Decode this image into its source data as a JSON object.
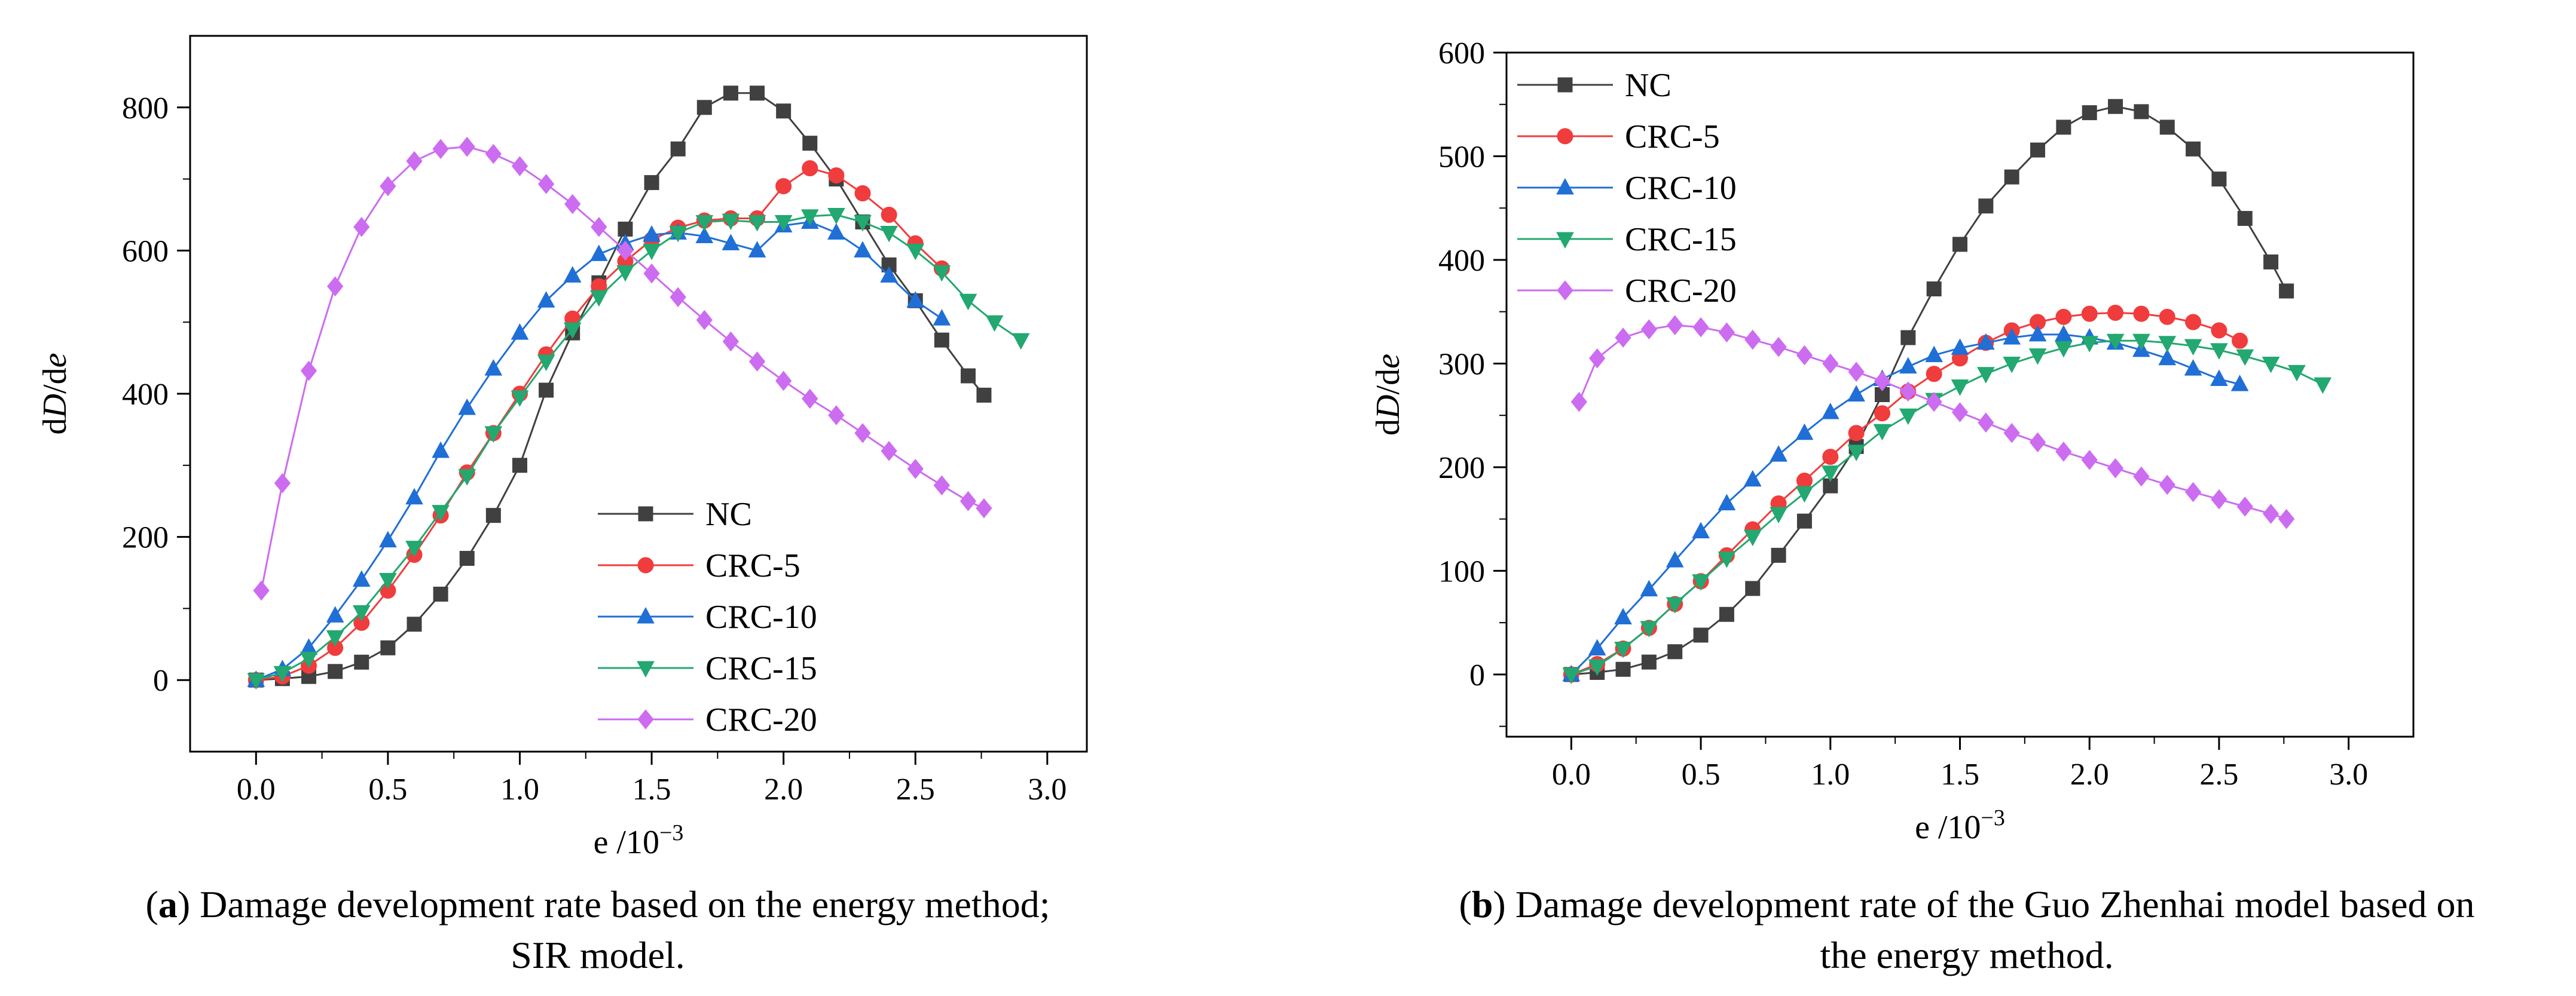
{
  "chart_data": [
    {
      "type": "line",
      "id": "a",
      "xlabel_prefix": "e /10",
      "xlabel_exp": "−3",
      "ylabel_prefix": "d",
      "ylabel_italic_1": "D",
      "ylabel_mid": "/d",
      "ylabel_italic_2": "e",
      "xlim": [
        -0.25,
        3.15
      ],
      "ylim": [
        -100,
        900
      ],
      "xticks": [
        0.0,
        0.5,
        1.0,
        1.5,
        2.0,
        2.5,
        3.0
      ],
      "xtick_labels": [
        "0.0",
        "0.5",
        "1.0",
        "1.5",
        "2.0",
        "2.5",
        "3.0"
      ],
      "yticks": [
        0,
        200,
        400,
        600,
        800
      ],
      "ytick_labels": [
        "0",
        "200",
        "400",
        "600",
        "800"
      ],
      "legend_position": "bottom-center",
      "caption_label": "(a)",
      "caption_line1": " Damage development rate based on the energy method;",
      "caption_line2": "SIR model.",
      "series": [
        {
          "name": "NC",
          "color": "#404040",
          "marker": "square",
          "x": [
            0,
            0.1,
            0.2,
            0.3,
            0.4,
            0.5,
            0.6,
            0.7,
            0.8,
            0.9,
            1.0,
            1.1,
            1.2,
            1.3,
            1.4,
            1.5,
            1.6,
            1.7,
            1.8,
            1.9,
            2.0,
            2.1,
            2.2,
            2.3,
            2.4,
            2.5,
            2.6,
            2.7,
            2.76
          ],
          "y": [
            0,
            2,
            5,
            12,
            25,
            45,
            78,
            120,
            170,
            230,
            300,
            405,
            485,
            555,
            630,
            695,
            742,
            800,
            820,
            820,
            795,
            750,
            700,
            640,
            580,
            530,
            475,
            425,
            398
          ]
        },
        {
          "name": "CRC-5",
          "color": "#f03c3c",
          "marker": "circle",
          "x": [
            0,
            0.1,
            0.2,
            0.3,
            0.4,
            0.5,
            0.6,
            0.7,
            0.8,
            0.9,
            1.0,
            1.1,
            1.2,
            1.3,
            1.4,
            1.5,
            1.6,
            1.7,
            1.8,
            1.9,
            2.0,
            2.1,
            2.2,
            2.3,
            2.4,
            2.5,
            2.6
          ],
          "y": [
            0,
            5,
            20,
            45,
            80,
            125,
            175,
            230,
            290,
            345,
            400,
            455,
            505,
            550,
            585,
            615,
            632,
            642,
            645,
            645,
            690,
            715,
            705,
            680,
            650,
            610,
            575
          ]
        },
        {
          "name": "CRC-10",
          "color": "#1f6fd6",
          "marker": "triangle-up",
          "x": [
            0,
            0.1,
            0.2,
            0.3,
            0.4,
            0.5,
            0.6,
            0.7,
            0.8,
            0.9,
            1.0,
            1.1,
            1.2,
            1.3,
            1.4,
            1.5,
            1.6,
            1.7,
            1.8,
            1.9,
            2.0,
            2.1,
            2.2,
            2.3,
            2.4,
            2.5,
            2.6
          ],
          "y": [
            0,
            15,
            45,
            90,
            140,
            195,
            255,
            320,
            380,
            435,
            485,
            530,
            565,
            595,
            610,
            622,
            625,
            620,
            610,
            600,
            635,
            640,
            625,
            600,
            565,
            530,
            505
          ]
        },
        {
          "name": "CRC-15",
          "color": "#22a870",
          "marker": "triangle-down",
          "x": [
            0,
            0.1,
            0.2,
            0.3,
            0.4,
            0.5,
            0.6,
            0.7,
            0.8,
            0.9,
            1.0,
            1.1,
            1.2,
            1.3,
            1.4,
            1.5,
            1.6,
            1.7,
            1.8,
            1.9,
            2.0,
            2.1,
            2.2,
            2.3,
            2.4,
            2.5,
            2.6,
            2.7,
            2.8,
            2.9
          ],
          "y": [
            0,
            10,
            30,
            60,
            95,
            140,
            185,
            235,
            285,
            345,
            395,
            445,
            490,
            535,
            570,
            600,
            625,
            640,
            642,
            640,
            640,
            648,
            650,
            640,
            625,
            600,
            570,
            530,
            500,
            475
          ]
        },
        {
          "name": "CRC-20",
          "color": "#cc6cf0",
          "marker": "diamond",
          "x": [
            0.02,
            0.1,
            0.2,
            0.3,
            0.4,
            0.5,
            0.6,
            0.7,
            0.8,
            0.9,
            1.0,
            1.1,
            1.2,
            1.3,
            1.4,
            1.5,
            1.6,
            1.7,
            1.8,
            1.9,
            2.0,
            2.1,
            2.2,
            2.3,
            2.4,
            2.5,
            2.6,
            2.7,
            2.76
          ],
          "y": [
            125,
            275,
            432,
            550,
            633,
            690,
            725,
            742,
            745,
            735,
            718,
            693,
            665,
            633,
            600,
            568,
            535,
            503,
            473,
            445,
            418,
            393,
            370,
            345,
            320,
            295,
            272,
            250,
            240
          ]
        }
      ]
    },
    {
      "type": "line",
      "id": "b",
      "xlabel_prefix": "e /10",
      "xlabel_exp": "−3",
      "ylabel_prefix": "d",
      "ylabel_italic_1": "D",
      "ylabel_mid": "/d",
      "ylabel_italic_2": "e",
      "xlim": [
        -0.25,
        3.25
      ],
      "ylim": [
        -60,
        600
      ],
      "xticks": [
        0.0,
        0.5,
        1.0,
        1.5,
        2.0,
        2.5,
        3.0
      ],
      "xtick_labels": [
        "0.0",
        "0.5",
        "1.0",
        "1.5",
        "2.0",
        "2.5",
        "3.0"
      ],
      "yticks": [
        0,
        100,
        200,
        300,
        400,
        500,
        600
      ],
      "ytick_labels": [
        "0",
        "100",
        "200",
        "300",
        "400",
        "500",
        "600"
      ],
      "legend_position": "top-left",
      "caption_label": "(b)",
      "caption_line1": " Damage development rate of the Guo Zhenhai model based on",
      "caption_line2": "the energy method.",
      "series": [
        {
          "name": "NC",
          "color": "#404040",
          "marker": "square",
          "x": [
            0,
            0.1,
            0.2,
            0.3,
            0.4,
            0.5,
            0.6,
            0.7,
            0.8,
            0.9,
            1.0,
            1.1,
            1.2,
            1.3,
            1.4,
            1.5,
            1.6,
            1.7,
            1.8,
            1.9,
            2.0,
            2.1,
            2.2,
            2.3,
            2.4,
            2.5,
            2.6,
            2.7,
            2.76
          ],
          "y": [
            0,
            2,
            5,
            12,
            22,
            38,
            58,
            83,
            115,
            148,
            182,
            220,
            270,
            325,
            372,
            415,
            452,
            480,
            506,
            528,
            542,
            548,
            543,
            528,
            507,
            478,
            440,
            398,
            370
          ]
        },
        {
          "name": "CRC-5",
          "color": "#f03c3c",
          "marker": "circle",
          "x": [
            0,
            0.1,
            0.2,
            0.3,
            0.4,
            0.5,
            0.6,
            0.7,
            0.8,
            0.9,
            1.0,
            1.1,
            1.2,
            1.3,
            1.4,
            1.5,
            1.6,
            1.7,
            1.8,
            1.9,
            2.0,
            2.1,
            2.2,
            2.3,
            2.4,
            2.5,
            2.58
          ],
          "y": [
            0,
            10,
            25,
            45,
            68,
            90,
            115,
            140,
            165,
            187,
            210,
            233,
            252,
            273,
            290,
            305,
            320,
            332,
            340,
            345,
            348,
            349,
            348,
            345,
            340,
            332,
            322
          ]
        },
        {
          "name": "CRC-10",
          "color": "#1f6fd6",
          "marker": "triangle-up",
          "x": [
            0,
            0.1,
            0.2,
            0.3,
            0.4,
            0.5,
            0.6,
            0.7,
            0.8,
            0.9,
            1.0,
            1.1,
            1.2,
            1.3,
            1.4,
            1.5,
            1.6,
            1.7,
            1.8,
            1.9,
            2.0,
            2.1,
            2.2,
            2.3,
            2.4,
            2.5,
            2.58
          ],
          "y": [
            0,
            25,
            55,
            82,
            110,
            138,
            165,
            188,
            212,
            233,
            253,
            270,
            285,
            297,
            308,
            315,
            320,
            325,
            328,
            328,
            325,
            320,
            313,
            305,
            295,
            285,
            280
          ]
        },
        {
          "name": "CRC-15",
          "color": "#22a870",
          "marker": "triangle-down",
          "x": [
            0,
            0.1,
            0.2,
            0.3,
            0.4,
            0.5,
            0.6,
            0.7,
            0.8,
            0.9,
            1.0,
            1.1,
            1.2,
            1.3,
            1.4,
            1.5,
            1.6,
            1.7,
            1.8,
            1.9,
            2.0,
            2.1,
            2.2,
            2.3,
            2.4,
            2.5,
            2.6,
            2.7,
            2.8,
            2.9
          ],
          "y": [
            0,
            8,
            25,
            45,
            68,
            90,
            112,
            133,
            155,
            175,
            195,
            215,
            235,
            250,
            265,
            278,
            290,
            300,
            308,
            315,
            320,
            322,
            322,
            320,
            317,
            313,
            307,
            300,
            292,
            280
          ]
        },
        {
          "name": "CRC-20",
          "color": "#cc6cf0",
          "marker": "diamond",
          "x": [
            0.03,
            0.1,
            0.2,
            0.3,
            0.4,
            0.5,
            0.6,
            0.7,
            0.8,
            0.9,
            1.0,
            1.1,
            1.2,
            1.3,
            1.4,
            1.5,
            1.6,
            1.7,
            1.8,
            1.9,
            2.0,
            2.1,
            2.2,
            2.3,
            2.4,
            2.5,
            2.6,
            2.7,
            2.76
          ],
          "y": [
            263,
            305,
            325,
            333,
            337,
            335,
            330,
            323,
            316,
            308,
            300,
            292,
            283,
            273,
            263,
            253,
            243,
            233,
            224,
            215,
            207,
            199,
            191,
            183,
            176,
            169,
            162,
            155,
            150
          ]
        }
      ]
    }
  ]
}
